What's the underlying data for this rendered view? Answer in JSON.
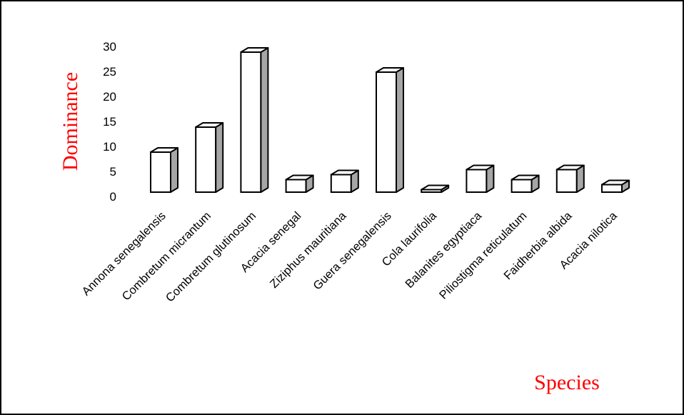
{
  "chart_data": {
    "type": "bar",
    "style": "3d-column",
    "xlabel": "Species",
    "ylabel": "Dominance",
    "ylim": [
      0,
      30
    ],
    "yticks": [
      0,
      5,
      10,
      15,
      20,
      25,
      30
    ],
    "grid": false,
    "legend": "none",
    "categories": [
      "Annona senegalensis",
      "Combretum micrantum",
      "Combretum glutinosum",
      "Acacia senegal",
      "Ziziphus mauritiana",
      "Guera senegalensis",
      "Cola laurifolia",
      "Balanites egyptiaca",
      "Piliostigma reticulatum",
      "Faidherbia albida",
      "Acacia nilotica"
    ],
    "values": [
      8,
      13,
      28,
      2.5,
      3.5,
      24,
      0.5,
      4.5,
      2.5,
      4.5,
      1.5
    ],
    "colors": {
      "bar_front": "#ffffff",
      "bar_side": "#a6a6a6",
      "bar_top": "#ffffff",
      "outline": "#000000",
      "axis_title": "#ff0000"
    }
  }
}
